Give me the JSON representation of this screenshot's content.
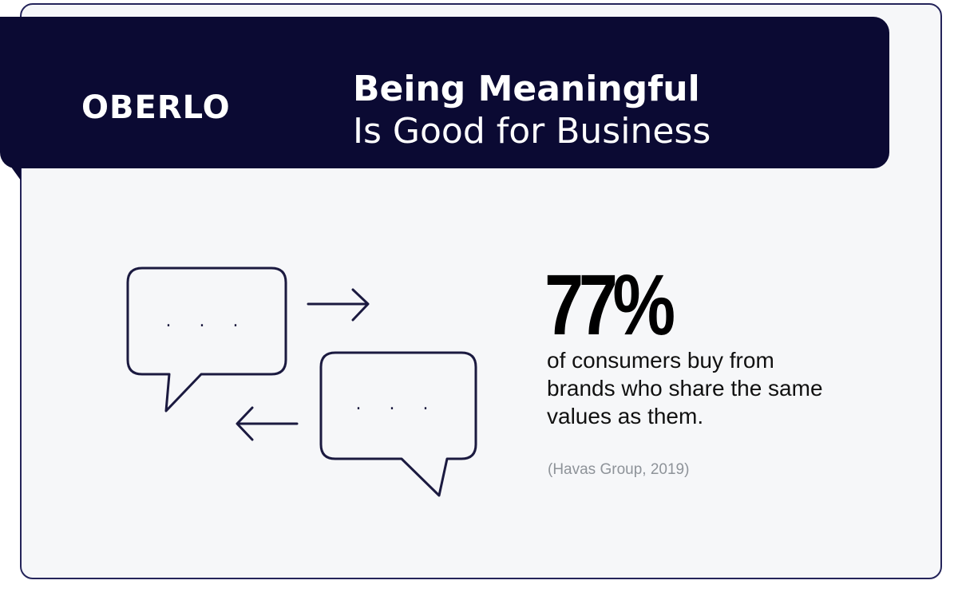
{
  "brand": {
    "logo_text": "OBERLO"
  },
  "header": {
    "title_line1": "Being Meaningful",
    "title_line2": "Is Good for Business"
  },
  "illustration": {
    "bubble_dots_top": ". . .",
    "bubble_dots_bottom": ". . .",
    "icons": [
      "speech-bubble-icon",
      "arrow-right-icon",
      "arrow-left-icon"
    ]
  },
  "stat": {
    "value": "77%",
    "description": "of consumers buy from brands who share the same values as them.",
    "source": "(Havas Group, 2019)"
  },
  "colors": {
    "header_bg": "#0b0a33",
    "card_bg": "#f6f7f9",
    "card_border": "#24245a",
    "stroke": "#1b1a40",
    "source_text": "#8e9399"
  }
}
